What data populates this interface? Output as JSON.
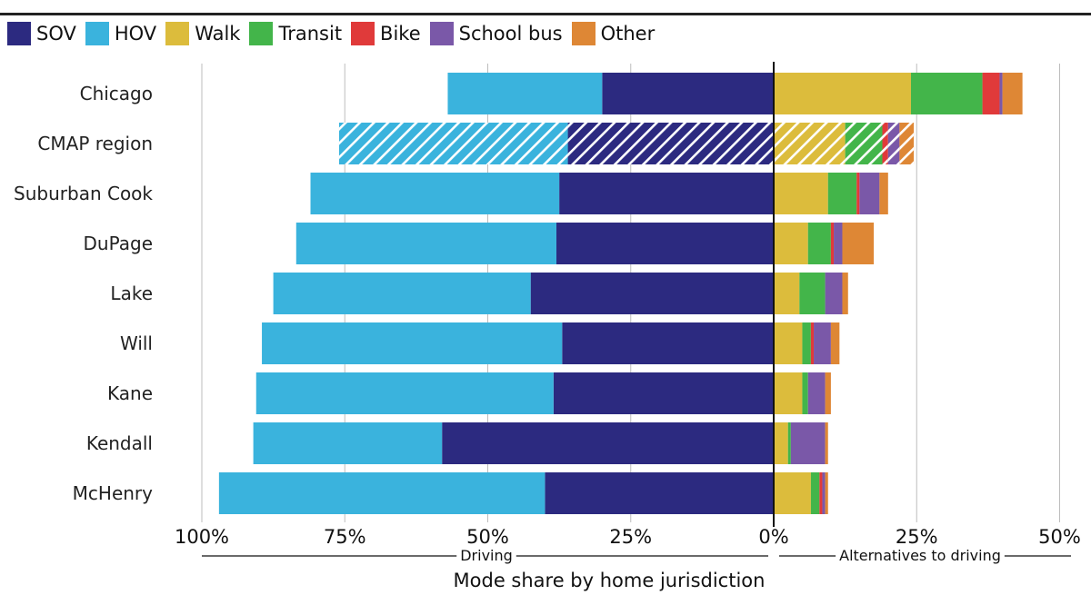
{
  "chart_data": {
    "type": "bar",
    "title": "",
    "xlabel": "Mode share by home jurisdiction",
    "ylabel": "",
    "xlim": [
      -100,
      50
    ],
    "xticks": [
      -100,
      -75,
      -50,
      -25,
      0,
      25,
      50
    ],
    "tick_labels": [
      "100%",
      "75%",
      "50%",
      "25%",
      "0%",
      "25%",
      "50%"
    ],
    "grid": true,
    "legend_position": "top-left",
    "group_labels": {
      "driving": "Driving",
      "alternatives": "Alternatives to driving"
    },
    "categories": [
      "Chicago",
      "CMAP region",
      "Suburban Cook",
      "DuPage",
      "Lake",
      "Will",
      "Kane",
      "Kendall",
      "McHenry"
    ],
    "highlighted_category": "CMAP region",
    "driving_series": [
      {
        "name": "SOV",
        "color": "#2c2a80",
        "values": [
          30,
          36,
          37.5,
          38,
          42.5,
          37,
          38.5,
          58,
          40
        ]
      },
      {
        "name": "HOV",
        "color": "#3ab3dd",
        "values": [
          27,
          40,
          43.5,
          45.5,
          45,
          52.5,
          52,
          33,
          57
        ]
      }
    ],
    "alternative_series": [
      {
        "name": "Walk",
        "color": "#dcbc3c",
        "values": [
          24,
          12.5,
          9.5,
          6,
          4.5,
          5,
          5,
          2.5,
          6.5
        ]
      },
      {
        "name": "Transit",
        "color": "#43b54a",
        "values": [
          12.5,
          6.5,
          5,
          4,
          4.5,
          1.5,
          1,
          0.5,
          1.5
        ]
      },
      {
        "name": "Bike",
        "color": "#e03a3a",
        "values": [
          3,
          1,
          0.5,
          0.5,
          0,
          0.5,
          0,
          0,
          0.5
        ]
      },
      {
        "name": "School bus",
        "color": "#7a58a8",
        "values": [
          0.5,
          2,
          3.5,
          1.5,
          3,
          3,
          3,
          6,
          0.5
        ]
      },
      {
        "name": "Other",
        "color": "#de8735",
        "values": [
          3.5,
          2.5,
          1.5,
          5.5,
          1,
          1.5,
          1,
          0.5,
          0.5
        ]
      }
    ]
  }
}
